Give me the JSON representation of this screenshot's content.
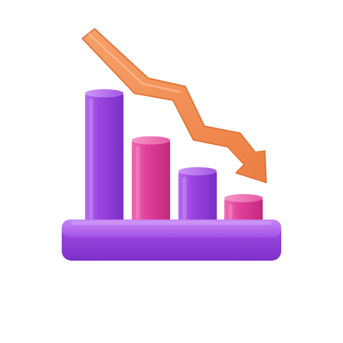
{
  "illustration": {
    "icon": "declining-bar-chart-icon",
    "trend": "down",
    "bars": [
      {
        "level": 1.0,
        "color": "#9b45e0"
      },
      {
        "level": 0.65,
        "color": "#e03f98"
      },
      {
        "level": 0.42,
        "color": "#9b45e0"
      },
      {
        "level": 0.22,
        "color": "#e03f98"
      }
    ],
    "arrow_color": "#f28c50",
    "base_color": "#a451e6"
  }
}
